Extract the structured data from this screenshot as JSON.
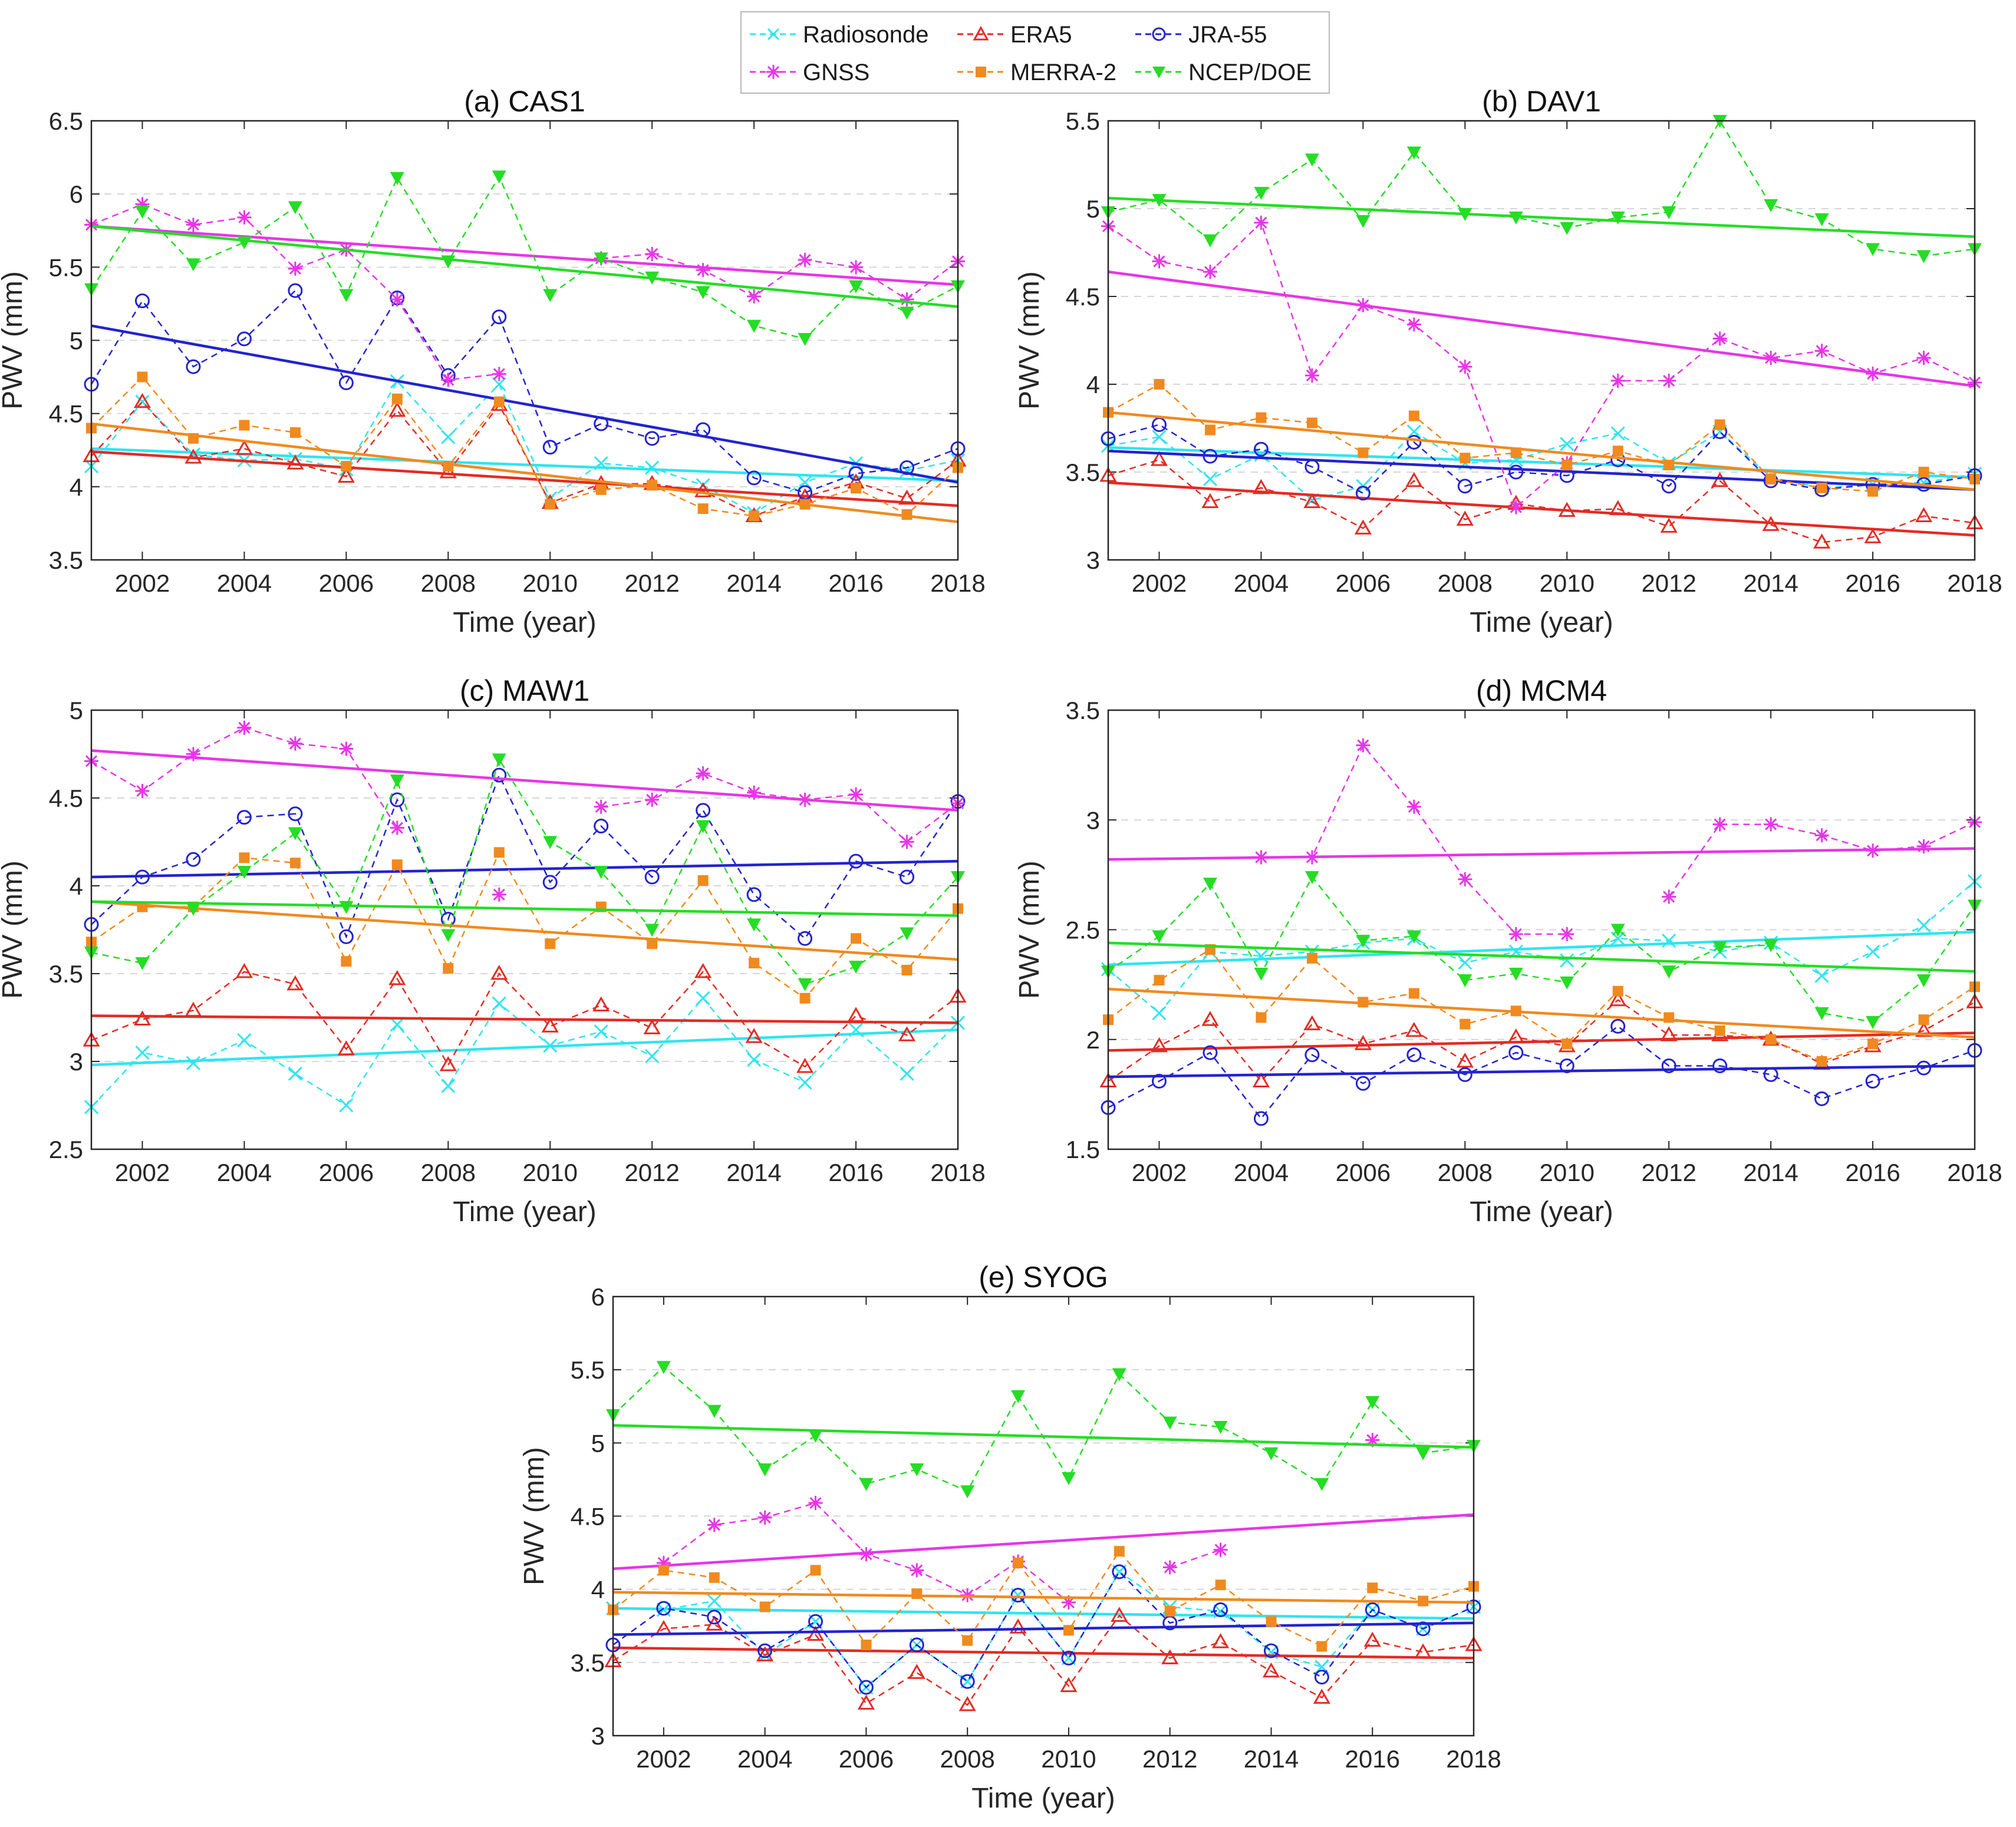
{
  "legend": {
    "entries": [
      {
        "name": "Radiosonde",
        "color": "#2fe5ef",
        "marker": "x"
      },
      {
        "name": "ERA5",
        "color": "#e32b24",
        "marker": "triangle-up"
      },
      {
        "name": "JRA-55",
        "color": "#2323cf",
        "marker": "circle"
      },
      {
        "name": "GNSS",
        "color": "#e636e6",
        "marker": "asterisk"
      },
      {
        "name": "MERRA-2",
        "color": "#f08a1e",
        "marker": "square"
      },
      {
        "name": "NCEP/DOE",
        "color": "#25dd25",
        "marker": "triangle-down"
      }
    ]
  },
  "chart_data": [
    {
      "type": "line",
      "title": "(a) CAS1",
      "xlabel": "Time (year)",
      "ylabel": "PWV (mm)",
      "xlim": [
        2001,
        2018
      ],
      "ylim": [
        3.5,
        6.5
      ],
      "xticks": [
        2002,
        2004,
        2006,
        2008,
        2010,
        2012,
        2014,
        2016,
        2018
      ],
      "yticks": [
        3.5,
        4,
        4.5,
        5,
        5.5,
        6,
        6.5
      ],
      "grid": "horizontal dashed",
      "x": [
        2001,
        2002,
        2003,
        2004,
        2005,
        2006,
        2007,
        2008,
        2009,
        2010,
        2011,
        2012,
        2013,
        2014,
        2015,
        2016,
        2017,
        2018
      ],
      "series": [
        {
          "name": "Radiosonde",
          "values": [
            4.14,
            4.58,
            4.22,
            4.18,
            4.19,
            4.12,
            4.72,
            4.34,
            4.7,
            3.92,
            4.16,
            4.13,
            4.01,
            3.82,
            4.03,
            4.16,
            4.11,
            4.18
          ],
          "trend": [
            4.26,
            4.04
          ]
        },
        {
          "name": "ERA5",
          "values": [
            4.21,
            4.58,
            4.2,
            4.26,
            4.16,
            4.07,
            4.52,
            4.1,
            4.56,
            3.89,
            4.02,
            4.02,
            3.97,
            3.8,
            3.93,
            4.03,
            3.92,
            4.18
          ],
          "trend": [
            4.24,
            3.87
          ]
        },
        {
          "name": "JRA-55",
          "values": [
            4.7,
            5.27,
            4.82,
            5.01,
            5.34,
            4.71,
            5.29,
            4.76,
            5.16,
            4.27,
            4.43,
            4.33,
            4.39,
            4.06,
            3.96,
            4.09,
            4.13,
            4.26
          ],
          "trend": [
            5.1,
            4.03
          ]
        },
        {
          "name": "GNSS",
          "values": [
            5.79,
            5.93,
            5.79,
            5.84,
            5.49,
            5.62,
            5.28,
            4.73,
            4.77,
            null,
            5.56,
            5.59,
            5.48,
            5.3,
            5.55,
            5.5,
            5.28,
            5.54
          ],
          "trend": [
            5.78,
            5.38
          ]
        },
        {
          "name": "MERRA-2",
          "values": [
            4.4,
            4.75,
            4.33,
            4.42,
            4.37,
            4.14,
            4.6,
            4.14,
            4.58,
            3.88,
            3.98,
            4.01,
            3.85,
            3.8,
            3.88,
            3.99,
            3.81,
            4.13
          ],
          "trend": [
            4.43,
            3.76
          ]
        },
        {
          "name": "NCEP/DOE",
          "values": [
            5.35,
            5.88,
            5.52,
            5.67,
            5.91,
            5.31,
            6.11,
            5.54,
            6.12,
            5.31,
            5.56,
            5.43,
            5.33,
            5.1,
            5.01,
            5.37,
            5.19,
            5.37
          ],
          "trend": [
            5.78,
            5.23
          ]
        }
      ]
    },
    {
      "type": "line",
      "title": "(b) DAV1",
      "xlabel": "Time (year)",
      "ylabel": "PWV (mm)",
      "xlim": [
        2001,
        2018
      ],
      "ylim": [
        3,
        5.5
      ],
      "xticks": [
        2002,
        2004,
        2006,
        2008,
        2010,
        2012,
        2014,
        2016,
        2018
      ],
      "yticks": [
        3,
        3.5,
        4,
        4.5,
        5,
        5.5
      ],
      "grid": "horizontal dashed",
      "x": [
        2001,
        2002,
        2003,
        2004,
        2005,
        2006,
        2007,
        2008,
        2009,
        2010,
        2011,
        2012,
        2013,
        2014,
        2015,
        2016,
        2017,
        2018
      ],
      "series": [
        {
          "name": "Radiosonde",
          "values": [
            3.65,
            3.7,
            3.46,
            3.6,
            3.34,
            3.42,
            3.73,
            3.55,
            3.57,
            3.66,
            3.72,
            3.55,
            3.73,
            3.47,
            3.41,
            3.43,
            3.44,
            3.49
          ],
          "trend": [
            3.64,
            3.47
          ]
        },
        {
          "name": "ERA5",
          "values": [
            3.48,
            3.57,
            3.33,
            3.41,
            3.33,
            3.18,
            3.45,
            3.23,
            3.32,
            3.28,
            3.29,
            3.19,
            3.45,
            3.2,
            3.1,
            3.13,
            3.25,
            3.21
          ],
          "trend": [
            3.44,
            3.14
          ]
        },
        {
          "name": "JRA-55",
          "values": [
            3.69,
            3.77,
            3.59,
            3.63,
            3.53,
            3.38,
            3.67,
            3.42,
            3.5,
            3.48,
            3.57,
            3.42,
            3.73,
            3.45,
            3.4,
            3.43,
            3.43,
            3.48
          ],
          "trend": [
            3.62,
            3.4
          ]
        },
        {
          "name": "GNSS",
          "values": [
            4.9,
            4.7,
            4.64,
            4.92,
            4.05,
            4.45,
            4.34,
            4.1,
            3.3,
            3.55,
            4.02,
            4.02,
            4.26,
            4.15,
            4.19,
            4.06,
            4.15,
            4.01
          ],
          "trend": [
            4.64,
            3.99
          ]
        },
        {
          "name": "MERRA-2",
          "values": [
            3.84,
            4.0,
            3.74,
            3.81,
            3.78,
            3.61,
            3.82,
            3.58,
            3.61,
            3.54,
            3.62,
            3.54,
            3.77,
            3.46,
            3.41,
            3.39,
            3.5,
            3.46
          ],
          "trend": [
            3.84,
            3.4
          ]
        },
        {
          "name": "NCEP/DOE",
          "values": [
            4.98,
            5.05,
            4.82,
            5.09,
            5.28,
            4.93,
            5.32,
            4.97,
            4.95,
            4.89,
            4.95,
            4.98,
            5.5,
            5.02,
            4.94,
            4.77,
            4.73,
            4.77
          ],
          "trend": [
            5.06,
            4.84
          ]
        }
      ]
    },
    {
      "type": "line",
      "title": "(c) MAW1",
      "xlabel": "Time (year)",
      "ylabel": "PWV (mm)",
      "xlim": [
        2001,
        2018
      ],
      "ylim": [
        2.5,
        5
      ],
      "xticks": [
        2002,
        2004,
        2006,
        2008,
        2010,
        2012,
        2014,
        2016,
        2018
      ],
      "yticks": [
        2.5,
        3,
        3.5,
        4,
        4.5,
        5
      ],
      "grid": "horizontal dashed",
      "x": [
        2001,
        2002,
        2003,
        2004,
        2005,
        2006,
        2007,
        2008,
        2009,
        2010,
        2011,
        2012,
        2013,
        2014,
        2015,
        2016,
        2017,
        2018
      ],
      "series": [
        {
          "name": "Radiosonde",
          "values": [
            2.74,
            3.05,
            2.99,
            3.12,
            2.93,
            2.75,
            3.21,
            2.86,
            3.33,
            3.09,
            3.17,
            3.03,
            3.36,
            3.01,
            2.88,
            3.18,
            2.93,
            3.22
          ],
          "trend": [
            2.98,
            3.18
          ]
        },
        {
          "name": "ERA5",
          "values": [
            3.12,
            3.24,
            3.29,
            3.51,
            3.44,
            3.07,
            3.47,
            2.98,
            3.5,
            3.2,
            3.32,
            3.19,
            3.51,
            3.14,
            2.97,
            3.26,
            3.15,
            3.37
          ],
          "trend": [
            3.26,
            3.22
          ]
        },
        {
          "name": "JRA-55",
          "values": [
            3.78,
            4.05,
            4.15,
            4.39,
            4.41,
            3.71,
            4.49,
            3.81,
            4.63,
            4.02,
            4.34,
            4.05,
            4.43,
            3.95,
            3.7,
            4.14,
            4.05,
            4.48
          ],
          "trend": [
            4.05,
            4.14
          ]
        },
        {
          "name": "GNSS",
          "values": [
            4.71,
            4.54,
            4.75,
            4.9,
            4.81,
            4.78,
            4.33,
            null,
            3.95,
            null,
            4.45,
            4.49,
            4.64,
            4.53,
            4.49,
            4.52,
            4.25,
            4.47
          ],
          "trend": [
            4.77,
            4.43
          ]
        },
        {
          "name": "MERRA-2",
          "values": [
            3.68,
            3.88,
            3.88,
            4.16,
            4.13,
            3.57,
            4.12,
            3.53,
            4.19,
            3.67,
            3.88,
            3.67,
            4.03,
            3.56,
            3.36,
            3.7,
            3.52,
            3.87
          ],
          "trend": [
            3.91,
            3.58
          ]
        },
        {
          "name": "NCEP/DOE",
          "values": [
            3.62,
            3.56,
            3.87,
            4.08,
            4.3,
            3.88,
            4.6,
            3.72,
            4.72,
            4.25,
            4.08,
            3.75,
            4.34,
            3.78,
            3.44,
            3.54,
            3.73,
            4.05
          ],
          "trend": [
            3.91,
            3.83
          ]
        }
      ]
    },
    {
      "type": "line",
      "title": "(d) MCM4",
      "xlabel": "Time (year)",
      "ylabel": "PWV (mm)",
      "xlim": [
        2001,
        2018
      ],
      "ylim": [
        1.5,
        3.5
      ],
      "xticks": [
        2002,
        2004,
        2006,
        2008,
        2010,
        2012,
        2014,
        2016,
        2018
      ],
      "yticks": [
        1.5,
        2,
        2.5,
        3,
        3.5
      ],
      "grid": "horizontal dashed",
      "x": [
        2001,
        2002,
        2003,
        2004,
        2005,
        2006,
        2007,
        2008,
        2009,
        2010,
        2011,
        2012,
        2013,
        2014,
        2015,
        2016,
        2017,
        2018
      ],
      "series": [
        {
          "name": "Radiosonde",
          "values": [
            2.32,
            2.12,
            2.4,
            2.38,
            2.4,
            2.44,
            2.46,
            2.35,
            2.4,
            2.36,
            2.46,
            2.45,
            2.4,
            2.44,
            2.29,
            2.4,
            2.52,
            2.72
          ],
          "trend": [
            2.34,
            2.49
          ]
        },
        {
          "name": "ERA5",
          "values": [
            1.81,
            1.97,
            2.09,
            1.81,
            2.07,
            1.98,
            2.04,
            1.9,
            2.01,
            1.97,
            2.18,
            2.02,
            2.02,
            2.0,
            1.89,
            1.97,
            2.04,
            2.17
          ],
          "trend": [
            1.95,
            2.03
          ]
        },
        {
          "name": "JRA-55",
          "values": [
            1.69,
            1.81,
            1.94,
            1.64,
            1.93,
            1.8,
            1.93,
            1.84,
            1.94,
            1.88,
            2.06,
            1.88,
            1.88,
            1.84,
            1.73,
            1.81,
            1.87,
            1.95
          ],
          "trend": [
            1.83,
            1.88
          ]
        },
        {
          "name": "GNSS",
          "values": [
            null,
            null,
            null,
            2.83,
            2.83,
            3.34,
            3.06,
            2.73,
            2.48,
            2.48,
            null,
            2.65,
            2.98,
            2.98,
            2.93,
            2.86,
            2.88,
            2.99
          ],
          "trend": [
            2.82,
            2.87
          ]
        },
        {
          "name": "MERRA-2",
          "values": [
            2.09,
            2.27,
            2.41,
            2.1,
            2.37,
            2.17,
            2.21,
            2.07,
            2.13,
            1.98,
            2.22,
            2.1,
            2.04,
            2.0,
            1.9,
            1.98,
            2.09,
            2.24
          ],
          "trend": [
            2.23,
            2.01
          ]
        },
        {
          "name": "NCEP/DOE",
          "values": [
            2.31,
            2.47,
            2.71,
            2.3,
            2.74,
            2.45,
            2.47,
            2.27,
            2.3,
            2.26,
            2.5,
            2.31,
            2.42,
            2.43,
            2.12,
            2.08,
            2.27,
            2.61
          ],
          "trend": [
            2.44,
            2.31
          ]
        }
      ]
    },
    {
      "type": "line",
      "title": "(e) SYOG",
      "xlabel": "Time (year)",
      "ylabel": "PWV (mm)",
      "xlim": [
        2001,
        2018
      ],
      "ylim": [
        3,
        6
      ],
      "xticks": [
        2002,
        2004,
        2006,
        2008,
        2010,
        2012,
        2014,
        2016,
        2018
      ],
      "yticks": [
        3,
        3.5,
        4,
        4.5,
        5,
        5.5,
        6
      ],
      "grid": "horizontal dashed",
      "x": [
        2001,
        2002,
        2003,
        2004,
        2005,
        2006,
        2007,
        2008,
        2009,
        2010,
        2011,
        2012,
        2013,
        2014,
        2015,
        2016,
        2017,
        2018
      ],
      "series": [
        {
          "name": "Radiosonde",
          "values": [
            3.87,
            3.86,
            3.92,
            3.55,
            3.78,
            3.33,
            3.62,
            3.37,
            3.96,
            3.53,
            4.12,
            3.88,
            3.85,
            3.57,
            3.47,
            3.86,
            3.73,
            3.88
          ],
          "trend": [
            3.87,
            3.8
          ]
        },
        {
          "name": "ERA5",
          "values": [
            3.51,
            3.73,
            3.76,
            3.55,
            3.69,
            3.22,
            3.43,
            3.21,
            3.74,
            3.34,
            3.82,
            3.53,
            3.64,
            3.44,
            3.26,
            3.65,
            3.57,
            3.62
          ],
          "trend": [
            3.6,
            3.53
          ]
        },
        {
          "name": "JRA-55",
          "values": [
            3.62,
            3.87,
            3.81,
            3.58,
            3.78,
            3.33,
            3.62,
            3.37,
            3.96,
            3.53,
            4.12,
            3.77,
            3.86,
            3.58,
            3.4,
            3.86,
            3.73,
            3.88
          ],
          "trend": [
            3.69,
            3.77
          ]
        },
        {
          "name": "GNSS",
          "values": [
            null,
            4.18,
            4.44,
            4.49,
            4.59,
            4.24,
            4.13,
            3.96,
            4.19,
            3.91,
            null,
            4.15,
            4.27,
            null,
            null,
            5.02,
            null,
            null
          ],
          "trend": [
            4.14,
            4.51
          ]
        },
        {
          "name": "MERRA-2",
          "values": [
            3.86,
            4.13,
            4.08,
            3.88,
            4.13,
            3.62,
            3.97,
            3.65,
            4.18,
            3.72,
            4.26,
            3.85,
            4.03,
            3.78,
            3.61,
            4.01,
            3.92,
            4.02
          ],
          "trend": [
            3.98,
            3.91
          ]
        },
        {
          "name": "NCEP/DOE",
          "values": [
            5.19,
            5.52,
            5.22,
            4.82,
            5.05,
            4.72,
            4.82,
            4.67,
            5.32,
            4.76,
            5.47,
            5.14,
            5.11,
            4.93,
            4.72,
            5.28,
            4.93,
            4.98
          ],
          "trend": [
            5.12,
            4.97
          ]
        }
      ]
    }
  ]
}
